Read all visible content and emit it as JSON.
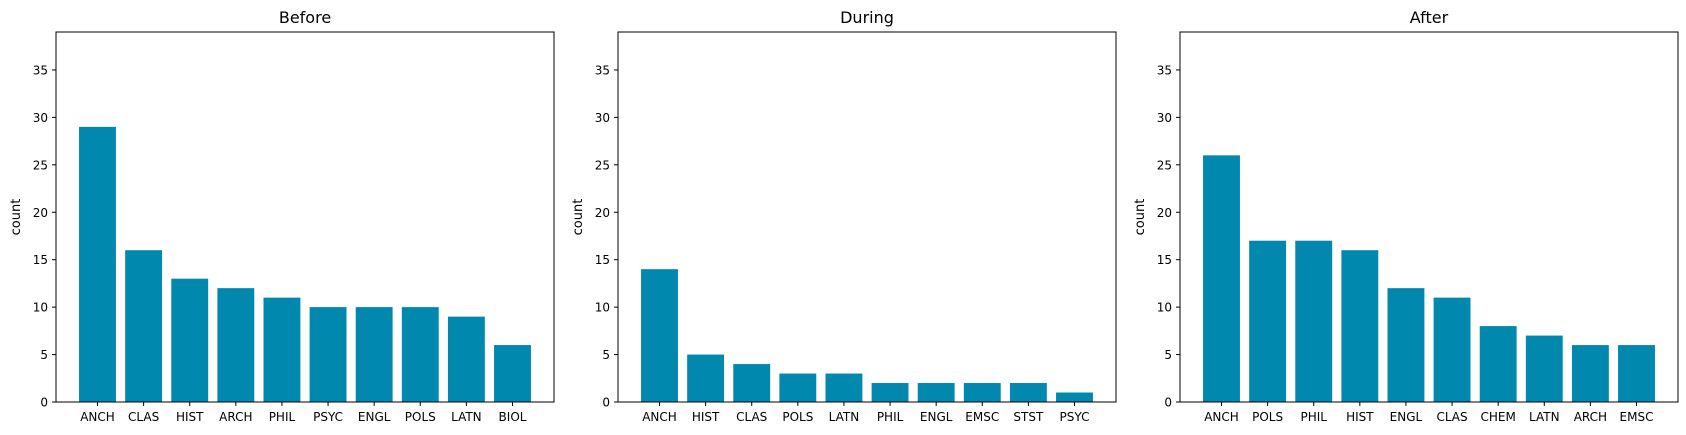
{
  "chart_data": [
    {
      "type": "bar",
      "title": "Before",
      "xlabel": "",
      "ylabel": "count",
      "ylim": [
        0,
        39
      ],
      "yticks": [
        0,
        5,
        10,
        15,
        20,
        25,
        30,
        35
      ],
      "grid": false,
      "bar_color": "#0088ae",
      "categories": [
        "ANCH",
        "CLAS",
        "HIST",
        "ARCH",
        "PHIL",
        "PSYC",
        "ENGL",
        "POLS",
        "LATN",
        "BIOL"
      ],
      "values": [
        29,
        16,
        13,
        12,
        11,
        10,
        10,
        10,
        9,
        6
      ]
    },
    {
      "type": "bar",
      "title": "During",
      "xlabel": "",
      "ylabel": "count",
      "ylim": [
        0,
        39
      ],
      "yticks": [
        0,
        5,
        10,
        15,
        20,
        25,
        30,
        35
      ],
      "grid": false,
      "bar_color": "#0088ae",
      "categories": [
        "ANCH",
        "HIST",
        "CLAS",
        "POLS",
        "LATN",
        "PHIL",
        "ENGL",
        "EMSC",
        "STST",
        "PSYC"
      ],
      "values": [
        14,
        5,
        4,
        3,
        3,
        2,
        2,
        2,
        2,
        1
      ]
    },
    {
      "type": "bar",
      "title": "After",
      "xlabel": "",
      "ylabel": "count",
      "ylim": [
        0,
        39
      ],
      "yticks": [
        0,
        5,
        10,
        15,
        20,
        25,
        30,
        35
      ],
      "grid": false,
      "bar_color": "#0088ae",
      "categories": [
        "ANCH",
        "POLS",
        "PHIL",
        "HIST",
        "ENGL",
        "CLAS",
        "CHEM",
        "LATN",
        "ARCH",
        "EMSC"
      ],
      "values": [
        26,
        17,
        17,
        16,
        12,
        11,
        8,
        7,
        6,
        6
      ]
    }
  ]
}
